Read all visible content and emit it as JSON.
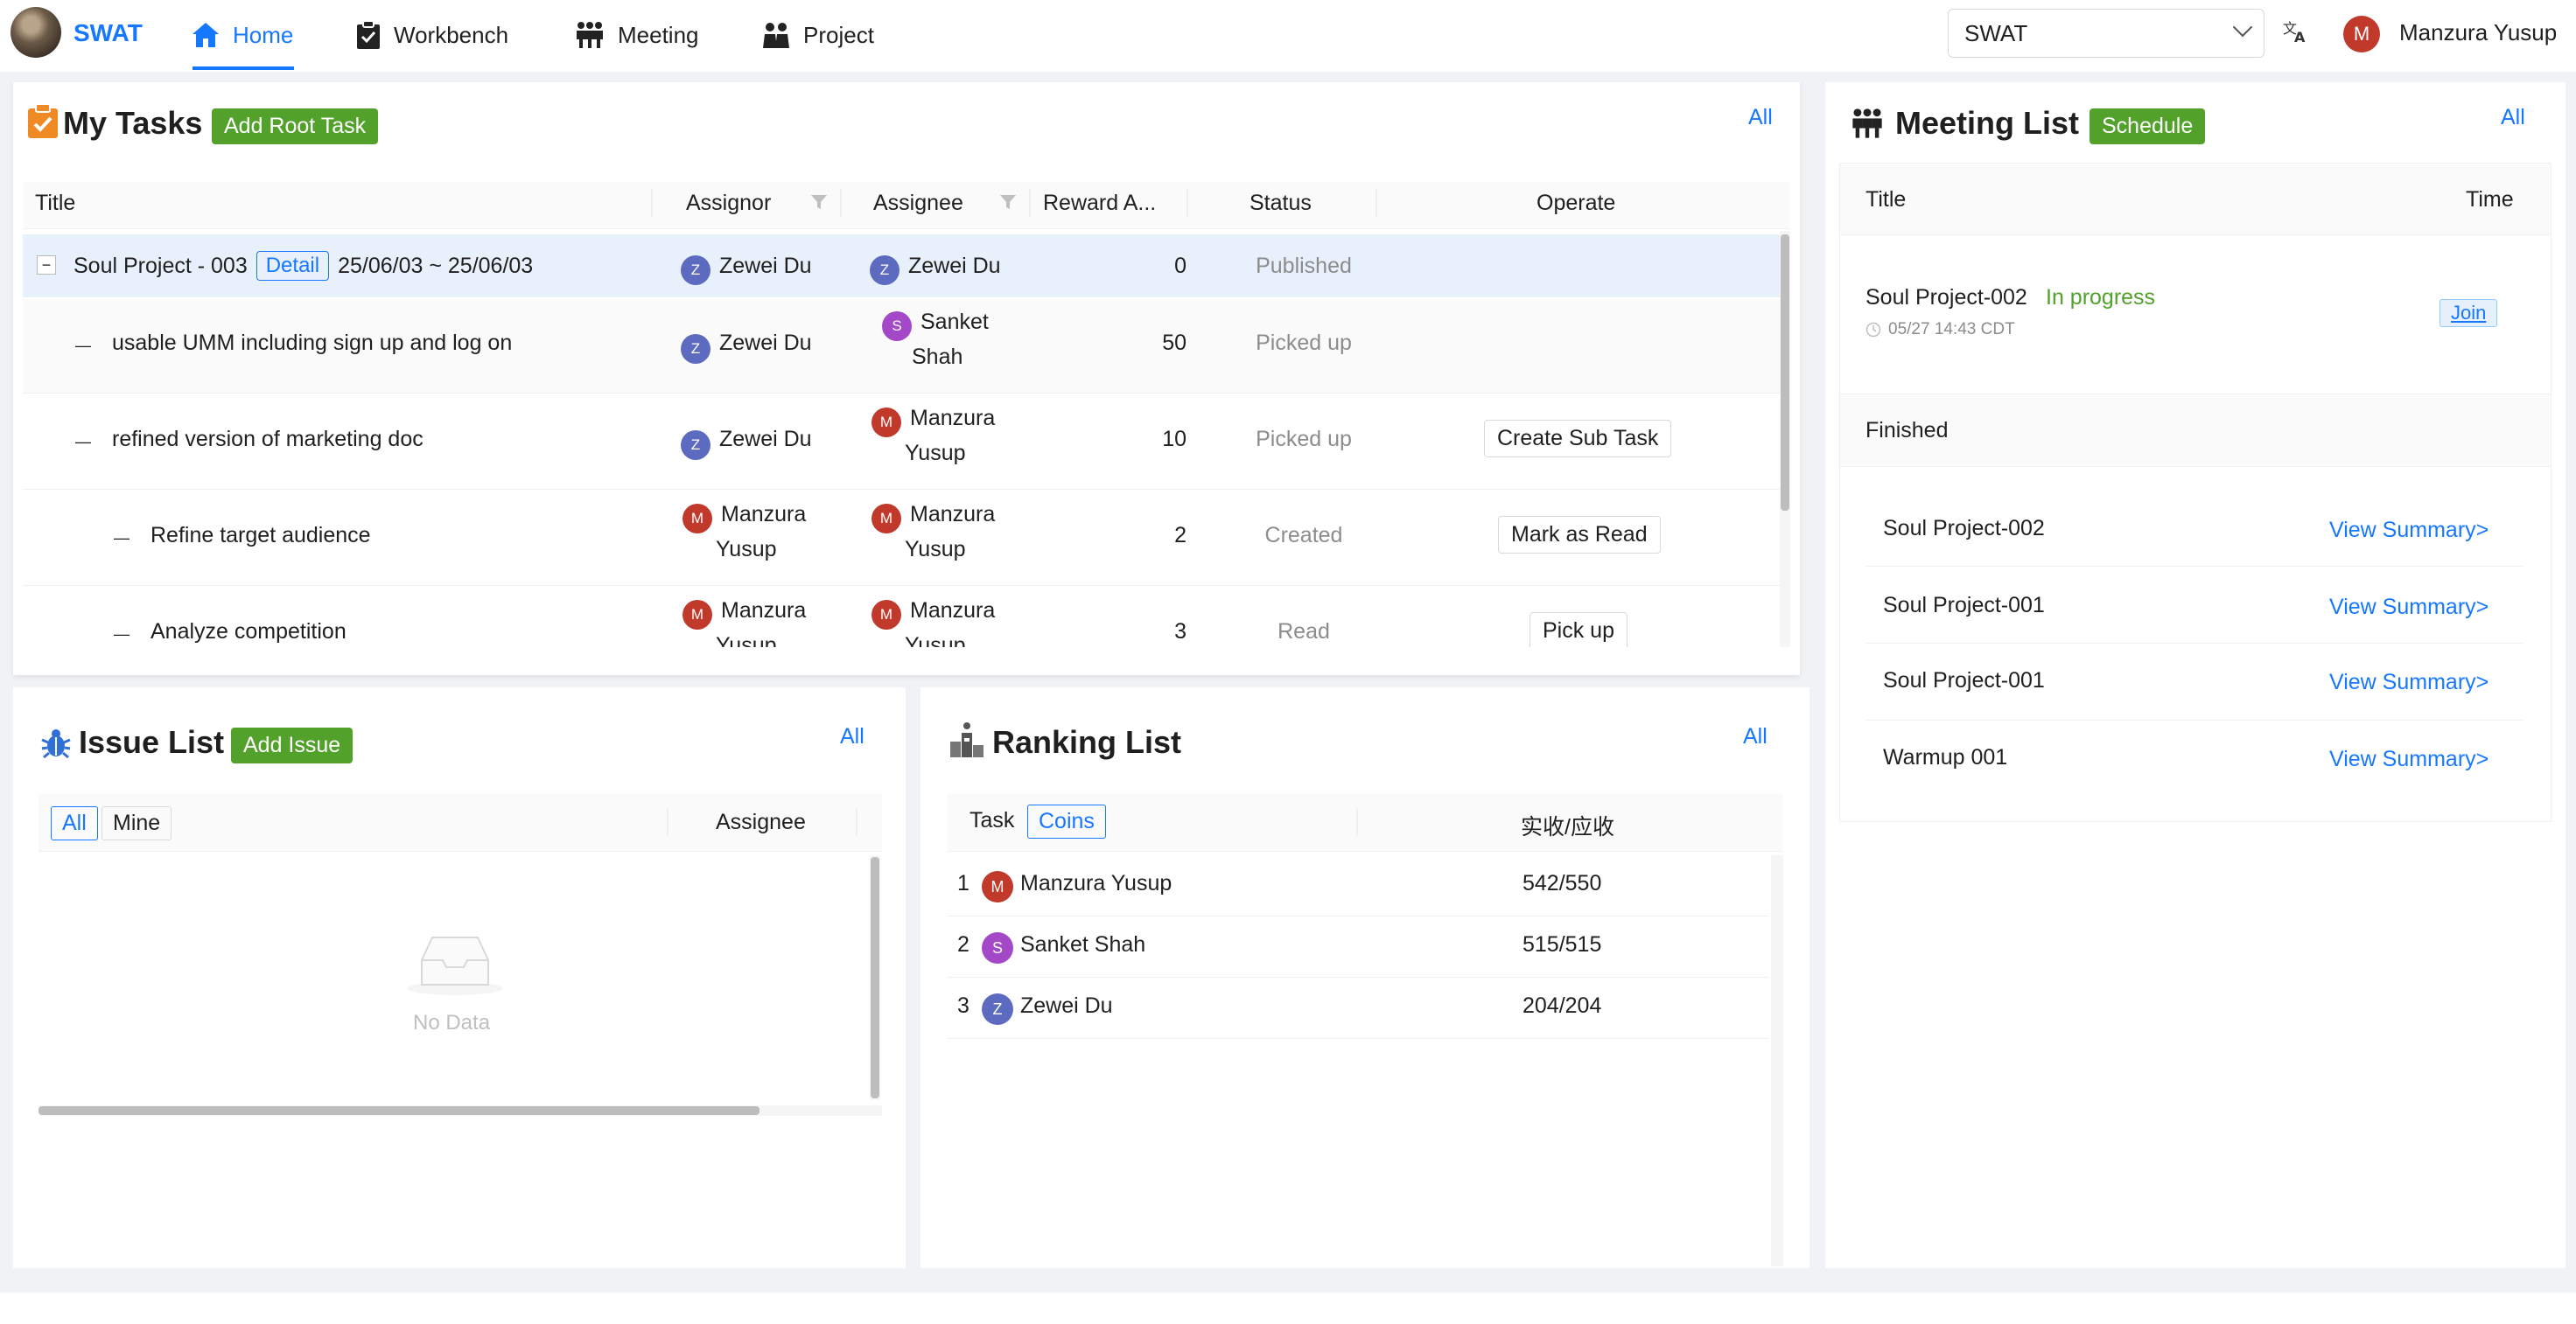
{
  "nav": {
    "brand": "SWAT",
    "items": [
      {
        "label": "Home",
        "icon": "home-icon",
        "active": true
      },
      {
        "label": "Workbench",
        "icon": "clipboard-icon",
        "active": false
      },
      {
        "label": "Meeting",
        "icon": "meeting-icon",
        "active": false
      },
      {
        "label": "Project",
        "icon": "project-icon",
        "active": false
      }
    ],
    "project_select": "SWAT",
    "user": {
      "initial": "M",
      "name": "Manzura Yusup"
    }
  },
  "tasks": {
    "title": "My Tasks",
    "add_button": "Add Root Task",
    "all_link": "All",
    "columns": {
      "title": "Title",
      "assignor": "Assignor",
      "assignee": "Assignee",
      "reward": "Reward A...",
      "status": "Status",
      "operate": "Operate"
    },
    "rows": [
      {
        "title": "Soul Project - 003",
        "detail": "Detail",
        "dates": "25/06/03 ~ 25/06/03",
        "assignor_initial": "Z",
        "assignor": "Zewei Du",
        "assignee_initial": "Z",
        "assignee_l1": "Zewei Du",
        "assignee_l2": "",
        "reward": "0",
        "status": "Published",
        "operate": ""
      },
      {
        "title": "usable UMM including sign up and log on",
        "assignor_initial": "Z",
        "assignor": "Zewei Du",
        "assignee_initial": "S",
        "assignee_l1": "Sanket",
        "assignee_l2": "Shah",
        "reward": "50",
        "status": "Picked up",
        "operate": ""
      },
      {
        "title": "refined version of marketing doc",
        "assignor_initial": "Z",
        "assignor": "Zewei Du",
        "assignee_initial": "M",
        "assignee_l1": "Manzura",
        "assignee_l2": "Yusup",
        "reward": "10",
        "status": "Picked up",
        "operate": "Create Sub Task"
      },
      {
        "title": "Refine target audience",
        "assignor_initial": "M",
        "assignor_l1": "Manzura",
        "assignor_l2": "Yusup",
        "assignee_initial": "M",
        "assignee_l1": "Manzura",
        "assignee_l2": "Yusup",
        "reward": "2",
        "status": "Created",
        "operate": "Mark as Read"
      },
      {
        "title": "Analyze competition",
        "assignor_initial": "M",
        "assignor_l1": "Manzura",
        "assignor_l2": "Yusup",
        "assignee_initial": "M",
        "assignee_l1": "Manzura",
        "assignee_l2": "Yusup",
        "reward": "3",
        "status": "Read",
        "operate": "Pick up"
      }
    ]
  },
  "issues": {
    "title": "Issue List",
    "add_button": "Add Issue",
    "all_link": "All",
    "filter_all": "All",
    "filter_mine": "Mine",
    "col_assignee": "Assignee",
    "empty": "No Data"
  },
  "ranking": {
    "title": "Ranking List",
    "all_link": "All",
    "tab_task": "Task",
    "tab_coins": "Coins",
    "col_value": "实收/应收",
    "rows": [
      {
        "rank": "1",
        "initial": "M",
        "name": "Manzura Yusup",
        "value": "542/550"
      },
      {
        "rank": "2",
        "initial": "S",
        "name": "Sanket Shah",
        "value": "515/515"
      },
      {
        "rank": "3",
        "initial": "Z",
        "name": "Zewei Du",
        "value": "204/204"
      }
    ]
  },
  "meetings": {
    "title": "Meeting List",
    "schedule_button": "Schedule",
    "all_link": "All",
    "col_title": "Title",
    "col_time": "Time",
    "current": {
      "name": "Soul Project-002",
      "status": "In progress",
      "time": "05/27 14:43 CDT",
      "join": "Join"
    },
    "finished_label": "Finished",
    "finished": [
      {
        "name": "Soul Project-002",
        "link": "View Summary>"
      },
      {
        "name": "Soul Project-001",
        "link": "View Summary>"
      },
      {
        "name": "Soul Project-001",
        "link": "View Summary>"
      },
      {
        "name": "Warmup 001",
        "link": "View Summary>"
      }
    ]
  }
}
